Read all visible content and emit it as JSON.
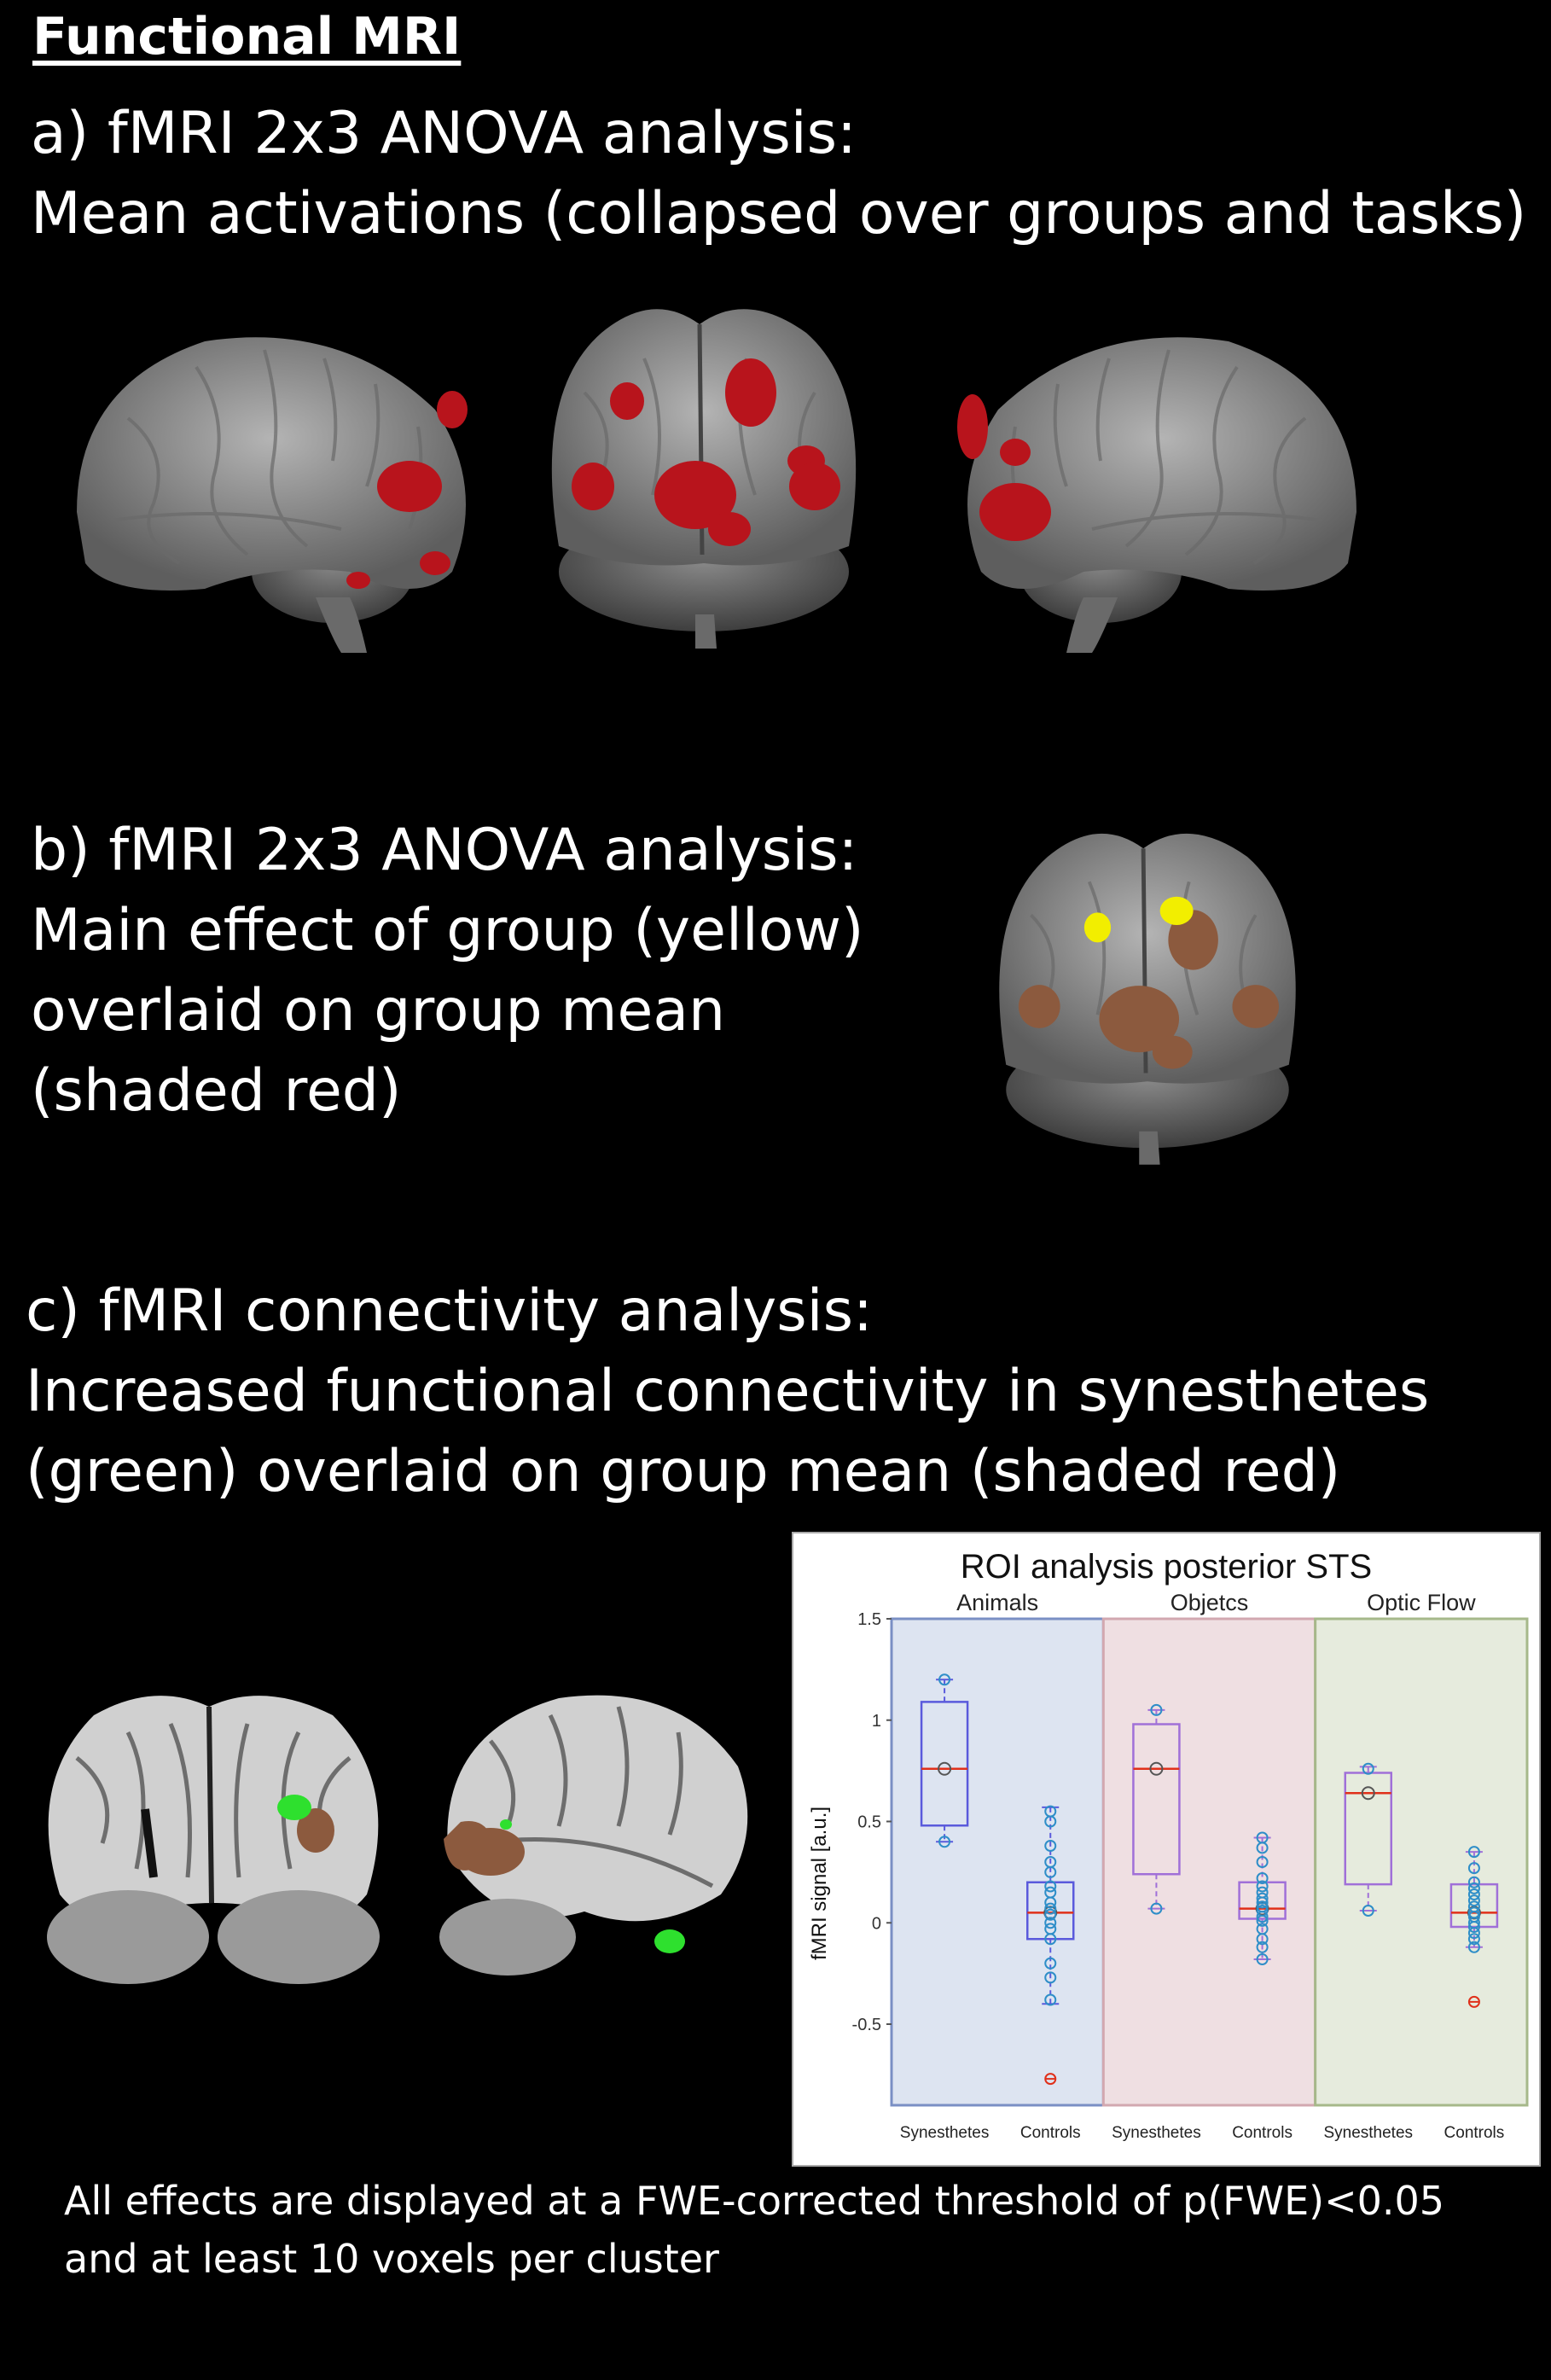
{
  "heading": "Functional MRI",
  "section_a": {
    "line1": "a) fMRI 2x3 ANOVA analysis:",
    "line2": "Mean activations  (collapsed over groups and tasks)"
  },
  "section_b": {
    "line1": "b) fMRI 2x3 ANOVA analysis:",
    "line2": "Main effect of group (yellow)",
    "line3": "overlaid on group mean",
    "line4": "(shaded red)"
  },
  "section_c": {
    "line1": "c) fMRI connectivity analysis:",
    "line2": "Increased functional connectivity in synesthetes",
    "line3": "(green) overlaid on group mean (shaded red)"
  },
  "footnote": {
    "line1": "All effects are displayed at a FWE-corrected threshold of p(FWE)<0.05",
    "line2": "and at least 10 voxels per cluster"
  },
  "colors": {
    "activation": "#b8141c",
    "group_effect": "#f2ee00",
    "group_mean_shaded": "#8c5a3e",
    "connectivity": "#2ee02e",
    "box_blue": "#5a5adc",
    "box_purple": "#a070d8",
    "median_red": "#e0301a",
    "point_blue": "#2e8ec8"
  },
  "chart_data": {
    "type": "box",
    "title": "ROI analysis posterior STS",
    "ylabel": "fMRI signal [a.u.]",
    "ylim": [
      -0.9,
      1.5
    ],
    "yticks": [
      "1.5",
      "1",
      "0.5",
      "0",
      "-0.5"
    ],
    "panels": [
      {
        "label": "Animals",
        "bg": "#dde4f1",
        "border": "#7a8fc4"
      },
      {
        "label": "Objetcs",
        "bg": "#efdfe2",
        "border": "#d2a8b0"
      },
      {
        "label": "Optic Flow",
        "bg": "#e6ebdd",
        "border": "#a6b88a"
      }
    ],
    "x_labels": [
      "Synesthetes",
      "Controls",
      "Synesthetes",
      "Controls",
      "Synesthetes",
      "Controls"
    ],
    "boxes": [
      {
        "panel": 0,
        "group": "Synesthetes",
        "q1": 0.48,
        "median": 0.76,
        "q3": 1.09,
        "whisker_low": 0.4,
        "whisker_high": 1.2,
        "mean": 0.76,
        "points": [
          1.2,
          0.4
        ],
        "outliers": []
      },
      {
        "panel": 0,
        "group": "Controls",
        "q1": -0.08,
        "median": 0.05,
        "q3": 0.2,
        "whisker_low": -0.4,
        "whisker_high": 0.57,
        "mean": 0.05,
        "points": [
          0.55,
          0.5,
          0.38,
          0.3,
          0.25,
          0.18,
          0.15,
          0.1,
          0.07,
          0.04,
          0.0,
          -0.03,
          -0.08,
          -0.2,
          -0.27,
          -0.38
        ],
        "outliers": [
          -0.77
        ]
      },
      {
        "panel": 1,
        "group": "Synesthetes",
        "q1": 0.24,
        "median": 0.76,
        "q3": 0.98,
        "whisker_low": 0.07,
        "whisker_high": 1.05,
        "mean": 0.76,
        "points": [
          1.05,
          0.07
        ],
        "outliers": []
      },
      {
        "panel": 1,
        "group": "Controls",
        "q1": 0.02,
        "median": 0.07,
        "q3": 0.2,
        "whisker_low": -0.18,
        "whisker_high": 0.42,
        "mean": 0.07,
        "points": [
          0.42,
          0.37,
          0.3,
          0.22,
          0.18,
          0.15,
          0.12,
          0.1,
          0.08,
          0.06,
          0.03,
          0.01,
          -0.03,
          -0.08,
          -0.12,
          -0.18
        ],
        "outliers": []
      },
      {
        "panel": 2,
        "group": "Synesthetes",
        "q1": 0.19,
        "median": 0.64,
        "q3": 0.74,
        "whisker_low": 0.06,
        "whisker_high": 0.77,
        "mean": 0.64,
        "points": [
          0.76,
          0.06
        ],
        "outliers": []
      },
      {
        "panel": 2,
        "group": "Controls",
        "q1": -0.02,
        "median": 0.05,
        "q3": 0.19,
        "whisker_low": -0.12,
        "whisker_high": 0.35,
        "mean": 0.05,
        "points": [
          0.35,
          0.27,
          0.2,
          0.17,
          0.14,
          0.11,
          0.08,
          0.05,
          0.03,
          0.0,
          -0.02,
          -0.05,
          -0.08,
          -0.12
        ],
        "outliers": [
          -0.39
        ]
      }
    ]
  }
}
